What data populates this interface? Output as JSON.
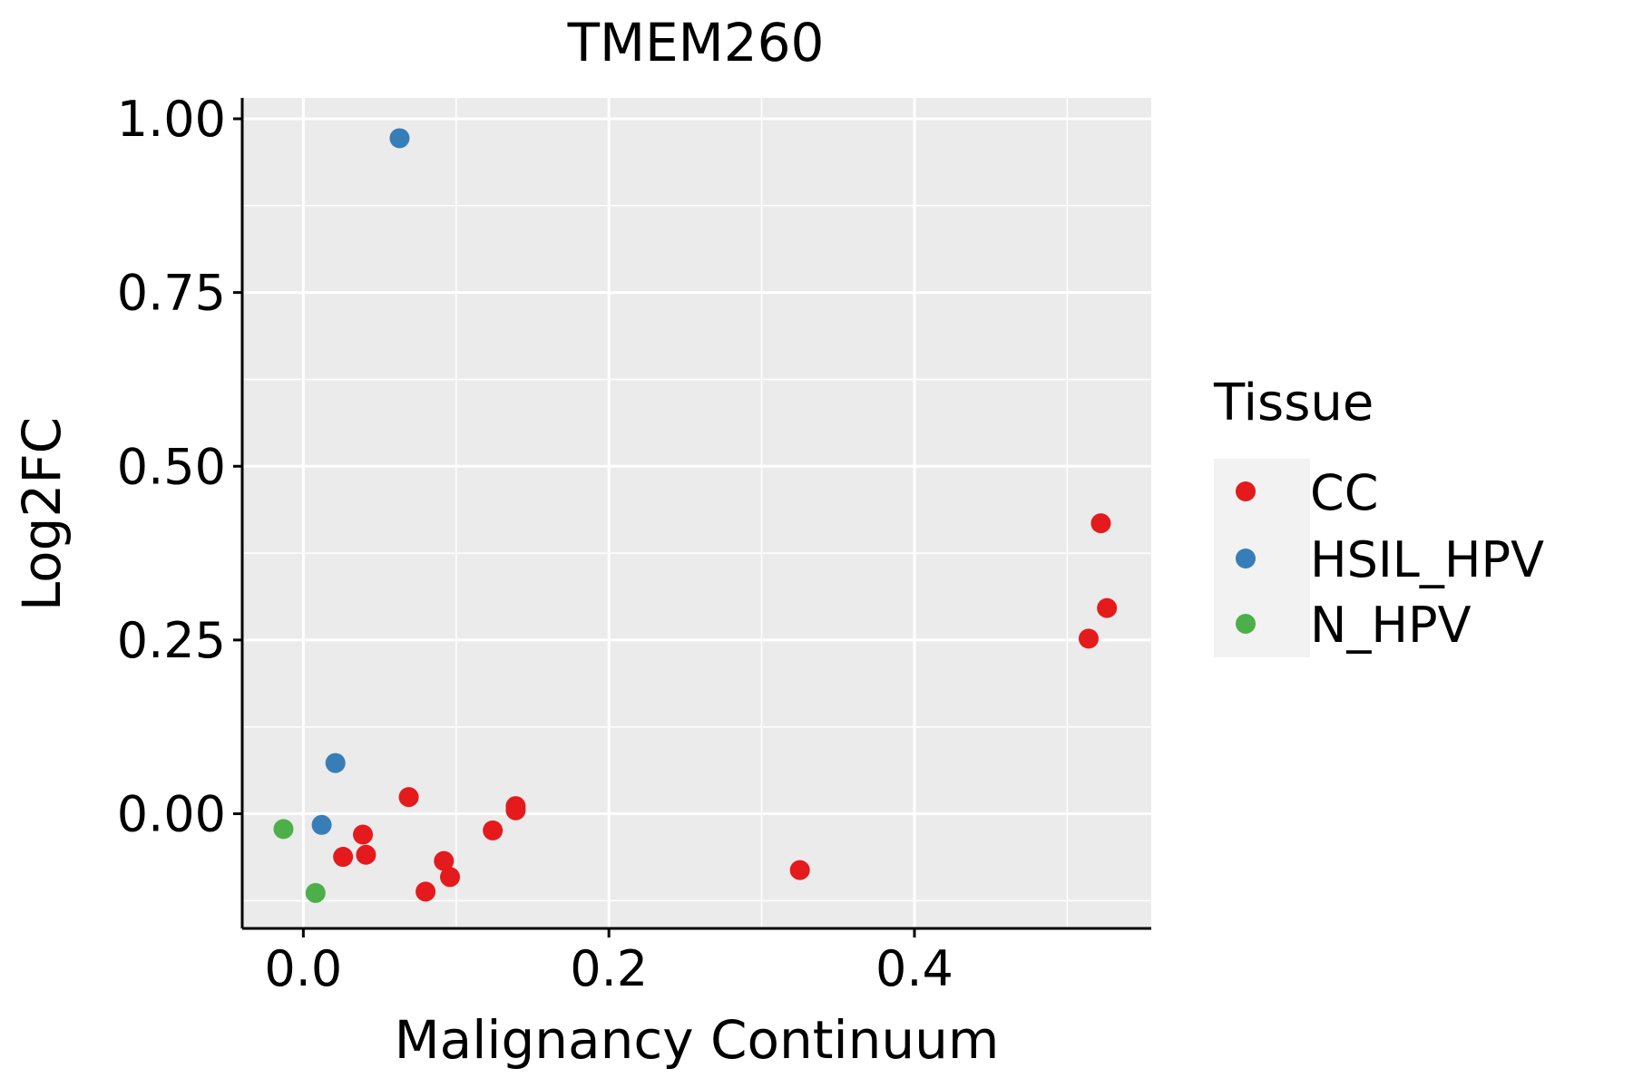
{
  "chart_data": {
    "type": "scatter",
    "title": "TMEM260",
    "xlabel": "Malignancy Continuum",
    "ylabel": "Log2FC",
    "xlim": [
      -0.04,
      0.555
    ],
    "ylim": [
      -0.165,
      1.03
    ],
    "xticks": [
      0.0,
      0.2,
      0.4
    ],
    "xtick_labels": [
      "0.0",
      "0.2",
      "0.4"
    ],
    "yticks": [
      0.0,
      0.25,
      0.5,
      0.75,
      1.0
    ],
    "ytick_labels": [
      "0.00",
      "0.25",
      "0.50",
      "0.75",
      "1.00"
    ],
    "grid": true,
    "legend": {
      "title": "Tissue",
      "position": "right",
      "entries": [
        {
          "name": "CC",
          "color": "#E41A1C"
        },
        {
          "name": "HSIL_HPV",
          "color": "#377EB8"
        },
        {
          "name": "N_HPV",
          "color": "#4DAF4A"
        }
      ]
    },
    "series": [
      {
        "name": "CC",
        "color": "#E41A1C",
        "points": [
          {
            "x": 0.522,
            "y": 0.418
          },
          {
            "x": 0.526,
            "y": 0.296
          },
          {
            "x": 0.514,
            "y": 0.252
          },
          {
            "x": 0.069,
            "y": 0.024
          },
          {
            "x": 0.139,
            "y": 0.011
          },
          {
            "x": 0.139,
            "y": 0.005
          },
          {
            "x": 0.124,
            "y": -0.024
          },
          {
            "x": 0.039,
            "y": -0.03
          },
          {
            "x": 0.026,
            "y": -0.062
          },
          {
            "x": 0.041,
            "y": -0.059
          },
          {
            "x": 0.092,
            "y": -0.068
          },
          {
            "x": 0.096,
            "y": -0.091
          },
          {
            "x": 0.08,
            "y": -0.112
          },
          {
            "x": 0.325,
            "y": -0.081
          }
        ]
      },
      {
        "name": "HSIL_HPV",
        "color": "#377EB8",
        "points": [
          {
            "x": 0.063,
            "y": 0.972
          },
          {
            "x": 0.021,
            "y": 0.073
          },
          {
            "x": 0.012,
            "y": -0.016
          }
        ]
      },
      {
        "name": "N_HPV",
        "color": "#4DAF4A",
        "points": [
          {
            "x": -0.013,
            "y": -0.022
          },
          {
            "x": 0.008,
            "y": -0.114
          }
        ]
      }
    ]
  },
  "colors": {
    "panel_background": "#EBEBEB",
    "grid": "#FFFFFF",
    "axis": "#000000"
  }
}
